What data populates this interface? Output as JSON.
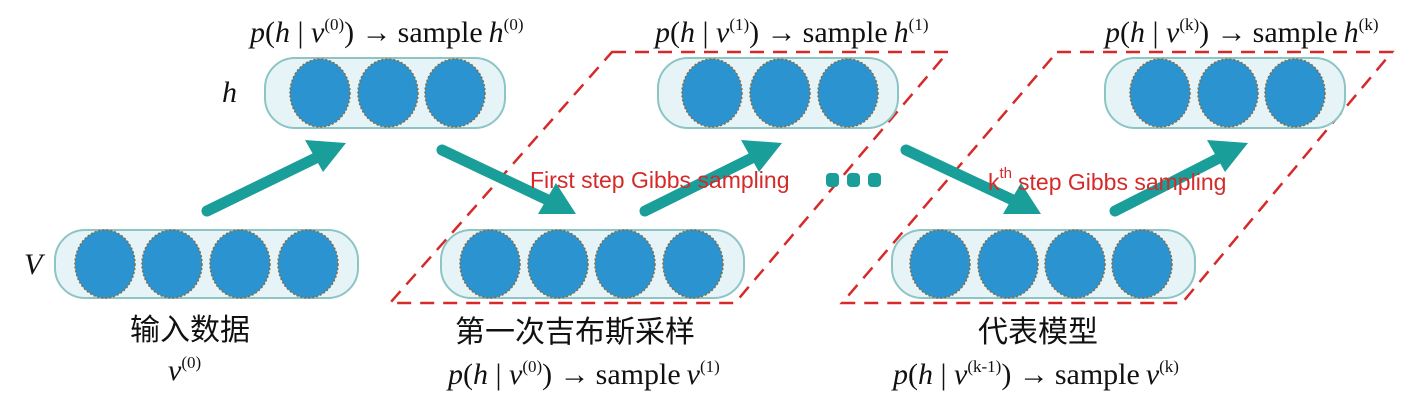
{
  "colors": {
    "unit": "#2a93d0",
    "layer_box": "#e6f4f8",
    "arrow": "#1a9e99",
    "frame": "#d62a2a",
    "step_text": "#d42a2a"
  },
  "layer_labels": {
    "hidden": "h",
    "visible": "V"
  },
  "top_labels": [
    {
      "p": "p",
      "h": "h",
      "v": "v",
      "cond": "(0)",
      "sample": "sample",
      "target": "h",
      "target_sup": "(0)"
    },
    {
      "p": "p",
      "h": "h",
      "v": "v",
      "cond": "(1)",
      "sample": "sample",
      "target": "h",
      "target_sup": "(1)"
    },
    {
      "p": "p",
      "h": "h",
      "v": "v",
      "cond": "(k)",
      "sample": "sample",
      "target": "h",
      "target_sup": "(k)"
    }
  ],
  "step_labels": {
    "first": "First step Gibbs sampling",
    "kth_k": "k",
    "kth_sup": "th",
    "kth_rest": "step Gibbs sampling"
  },
  "bottom": {
    "input_label": "输入数据",
    "input_var": "v",
    "input_sup": "(0)",
    "first_label": "第一次吉布斯采样",
    "first_formula": {
      "p": "p",
      "h": "h",
      "v": "v",
      "cond": "(0)",
      "sample": "sample",
      "target": "v",
      "target_sup": "(1)"
    },
    "model_label": "代表模型",
    "model_formula": {
      "p": "p",
      "h": "h",
      "v": "v",
      "cond": "(k-1)",
      "sample": "sample",
      "target": "v",
      "target_sup": "(k)"
    }
  },
  "layers": {
    "hidden_units": 3,
    "visible_units": 4
  }
}
